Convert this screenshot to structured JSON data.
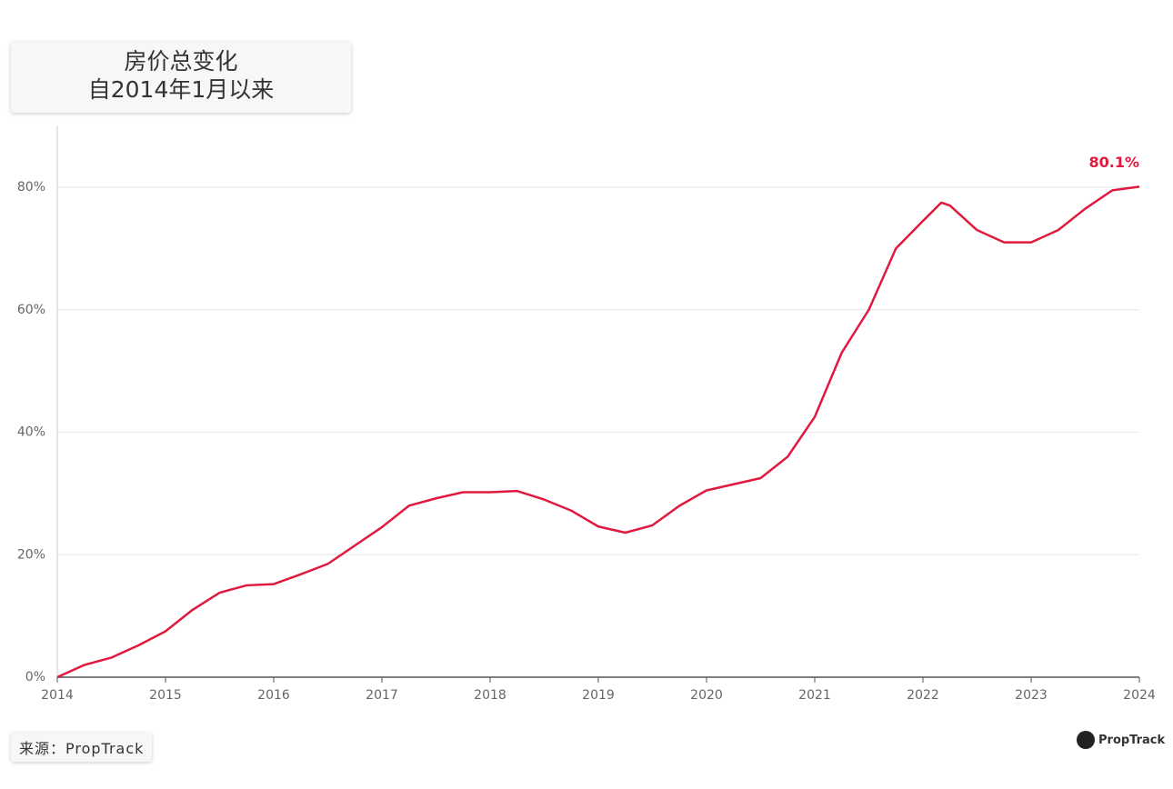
{
  "chart_data": {
    "type": "line",
    "title": "房价总变化",
    "subtitle": "自2014年1月以来",
    "source": "来源：PropTrack",
    "logo": "PropTrack",
    "x": [
      2014.0,
      2014.25,
      2014.5,
      2014.75,
      2015.0,
      2015.25,
      2015.5,
      2015.75,
      2016.0,
      2016.25,
      2016.5,
      2016.75,
      2017.0,
      2017.25,
      2017.5,
      2017.75,
      2018.0,
      2018.25,
      2018.5,
      2018.75,
      2019.0,
      2019.25,
      2019.5,
      2019.75,
      2020.0,
      2020.25,
      2020.5,
      2020.75,
      2021.0,
      2021.25,
      2021.5,
      2021.75,
      2022.0,
      2022.17,
      2022.25,
      2022.5,
      2022.75,
      2023.0,
      2023.25,
      2023.5,
      2023.75,
      2024.0
    ],
    "series": [
      {
        "name": "房价总变化",
        "color": "#e0193f",
        "values": [
          0,
          2.0,
          3.2,
          5.2,
          7.5,
          11,
          13.8,
          15,
          15.2,
          16.8,
          18.5,
          21.5,
          24.5,
          28,
          29.2,
          30.2,
          30.2,
          30.4,
          29,
          27.2,
          24.6,
          23.6,
          24.8,
          28,
          30.5,
          31.5,
          32.5,
          36,
          42.5,
          53,
          60,
          70,
          74.5,
          77.5,
          77,
          73,
          71,
          71,
          73,
          76.5,
          79.5,
          80.1
        ],
        "value_labels": [
          null,
          null,
          null,
          null,
          null,
          null,
          null,
          null,
          null,
          null,
          null,
          null,
          null,
          null,
          null,
          null,
          null,
          null,
          null,
          null,
          null,
          null,
          null,
          null,
          null,
          null,
          null,
          null,
          null,
          null,
          null,
          null,
          null,
          null,
          null,
          null,
          null,
          null,
          null,
          null,
          null,
          "80.1%"
        ]
      }
    ],
    "xlim": [
      2014,
      2024
    ],
    "xticks": [
      2014,
      2015,
      2016,
      2017,
      2018,
      2019,
      2020,
      2021,
      2022,
      2023,
      2024
    ],
    "ylim": [
      0,
      90
    ],
    "yticks": [
      {
        "value": 0,
        "label": "0%"
      },
      {
        "value": 20,
        "label": "20%"
      },
      {
        "value": 40,
        "label": "40%"
      },
      {
        "value": 60,
        "label": "60%"
      },
      {
        "value": 80,
        "label": "80%"
      }
    ],
    "grid": true
  }
}
